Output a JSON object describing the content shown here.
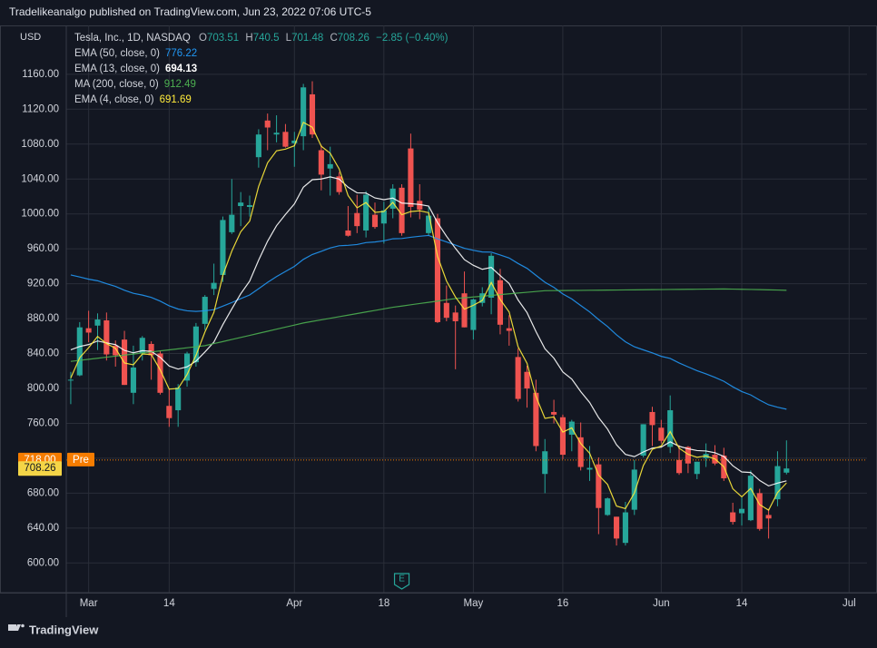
{
  "header": {
    "publisher": "Tradelikeanalgo published on TradingView.com, Jun 23, 2022 07:06 UTC-5"
  },
  "footer": {
    "brand": "TradingView"
  },
  "chart_data": {
    "type": "candlestick",
    "title": "Tesla, Inc., 1D, NASDAQ",
    "currency": "USD",
    "ohlc_prefixes": [
      "O",
      "H",
      "L",
      "C"
    ],
    "change": "−2.85 (−0.40%)",
    "x": [
      "2022-02-25",
      "2022-02-28",
      "2022-03-01",
      "2022-03-02",
      "2022-03-03",
      "2022-03-04",
      "2022-03-07",
      "2022-03-08",
      "2022-03-09",
      "2022-03-10",
      "2022-03-11",
      "2022-03-14",
      "2022-03-15",
      "2022-03-16",
      "2022-03-17",
      "2022-03-18",
      "2022-03-21",
      "2022-03-22",
      "2022-03-23",
      "2022-03-24",
      "2022-03-25",
      "2022-03-28",
      "2022-03-29",
      "2022-03-30",
      "2022-03-31",
      "2022-04-01",
      "2022-04-04",
      "2022-04-05",
      "2022-04-06",
      "2022-04-07",
      "2022-04-08",
      "2022-04-11",
      "2022-04-12",
      "2022-04-13",
      "2022-04-14",
      "2022-04-18",
      "2022-04-19",
      "2022-04-20",
      "2022-04-21",
      "2022-04-22",
      "2022-04-25",
      "2022-04-26",
      "2022-04-27",
      "2022-04-28",
      "2022-04-29",
      "2022-05-02",
      "2022-05-03",
      "2022-05-04",
      "2022-05-05",
      "2022-05-06",
      "2022-05-09",
      "2022-05-10",
      "2022-05-11",
      "2022-05-12",
      "2022-05-13",
      "2022-05-16",
      "2022-05-17",
      "2022-05-18",
      "2022-05-19",
      "2022-05-20",
      "2022-05-23",
      "2022-05-24",
      "2022-05-25",
      "2022-05-26",
      "2022-05-27",
      "2022-05-31",
      "2022-06-01",
      "2022-06-02",
      "2022-06-03",
      "2022-06-06",
      "2022-06-07",
      "2022-06-08",
      "2022-06-09",
      "2022-06-10",
      "2022-06-13",
      "2022-06-14",
      "2022-06-15",
      "2022-06-16",
      "2022-06-17",
      "2022-06-21",
      "2022-06-22"
    ],
    "open": [
      809,
      815,
      869,
      872,
      878,
      849,
      856,
      795,
      840,
      851,
      840,
      780,
      775,
      809,
      830,
      874,
      914,
      930,
      979,
      1009,
      1008,
      1065,
      1107,
      1091,
      1094,
      1081,
      1089,
      1137,
      1073,
      1052,
      1043,
      981,
      1001,
      981,
      999,
      989,
      1006,
      1030,
      1075,
      1015,
      978,
      995,
      898,
      887,
      909,
      867,
      898,
      904,
      924,
      869,
      836,
      819,
      795,
      702,
      773,
      767,
      747,
      744,
      707,
      713,
      655,
      653,
      623,
      661,
      723,
      773,
      755,
      733,
      718,
      733,
      702,
      720,
      724,
      723,
      658,
      657,
      649,
      680,
      655,
      673,
      703.51
    ],
    "high": [
      819,
      876,
      889,
      886,
      887,
      855,
      866,
      849,
      860,
      854,
      843,
      800,
      805,
      842,
      875,
      907,
      943,
      997,
      1040,
      1025,
      1021,
      1097,
      1115,
      1113,
      1103,
      1094,
      1149,
      1152,
      1079,
      1077,
      1048,
      1009,
      1022,
      1026,
      1013,
      1014,
      1034,
      1034,
      1092,
      1034,
      1008,
      1000,
      918,
      895,
      934,
      903,
      916,
      955,
      937,
      884,
      846,
      826,
      810,
      742,
      787,
      770,
      764,
      761,
      734,
      721,
      675,
      653,
      670,
      718,
      759,
      779,
      764,
      792,
      735,
      734,
      716,
      737,
      735,
      732,
      669,
      675,
      706,
      685,
      662,
      728,
      740.5
    ],
    "low": [
      782,
      814,
      853,
      844,
      832,
      825,
      804,
      782,
      832,
      810,
      793,
      756,
      756,
      802,
      825,
      867,
      907,
      922,
      977,
      986,
      997,
      1053,
      1073,
      1082,
      1076,
      1054,
      1073,
      1087,
      1027,
      1021,
      1022,
      974,
      978,
      973,
      983,
      966,
      995,
      975,
      996,
      994,
      975,
      875,
      877,
      822,
      870,
      856,
      894,
      885,
      862,
      849,
      785,
      778,
      728,
      680,
      760,
      719,
      728,
      706,
      694,
      633,
      654,
      620,
      620,
      655,
      721,
      734,
      737,
      726,
      701,
      703,
      696,
      710,
      712,
      694,
      644,
      643,
      648,
      637,
      628,
      665,
      701.48
    ],
    "close": [
      810,
      870,
      864,
      879,
      839,
      838,
      804,
      824,
      858,
      838,
      795,
      766,
      801,
      840,
      871,
      905,
      921,
      993,
      999,
      1013,
      1010,
      1091,
      1099,
      1093,
      1077,
      1084,
      1145,
      1091,
      1045,
      1057,
      1025,
      975,
      986,
      1022,
      985,
      1004,
      1029,
      978,
      1008,
      1005,
      998,
      876,
      881,
      877,
      870,
      902,
      909,
      952,
      873,
      866,
      788,
      800,
      734,
      728,
      770,
      724,
      762,
      710,
      709,
      663,
      674,
      628,
      658,
      707,
      759,
      758,
      740,
      775,
      703,
      714,
      716,
      725,
      714,
      697,
      647,
      662,
      700,
      639,
      651,
      711,
      708.26
    ],
    "up_color": "#26a69a",
    "down_color": "#ef5350",
    "series": [
      {
        "name": "EMA (50, close, 0)",
        "color": "#2196f3",
        "values": [
          930.1,
          927.7,
          925.2,
          923.4,
          920.1,
          916.9,
          912.5,
          909.0,
          907.0,
          904.3,
          900.0,
          894.7,
          891.0,
          889.0,
          888.3,
          889.0,
          890.3,
          894.3,
          898.4,
          902.9,
          907.1,
          914.3,
          921.5,
          928.2,
          934.0,
          939.9,
          947.9,
          953.5,
          957.1,
          961.0,
          963.5,
          964.0,
          964.9,
          967.1,
          967.8,
          969.2,
          971.5,
          971.8,
          973.2,
          974.4,
          975.3,
          971.4,
          967.9,
          964.3,
          960.6,
          958.3,
          956.4,
          956.2,
          952.9,
          949.5,
          943.2,
          937.6,
          929.6,
          921.7,
          915.8,
          908.3,
          902.6,
          895.0,
          887.7,
          878.9,
          870.9,
          861.4,
          853.4,
          847.7,
          844.2,
          840.8,
          836.8,
          834.4,
          829.2,
          824.7,
          820.4,
          816.7,
          812.7,
          808.2,
          801.9,
          796.4,
          792.6,
          786.6,
          781.3,
          778.5,
          776.22
        ]
      },
      {
        "name": "EMA (13, close, 0)",
        "color": "#ffffff",
        "values": [
          844.3,
          848.0,
          850.3,
          854.4,
          852.2,
          850.2,
          843.6,
          840.8,
          843.3,
          842.5,
          835.7,
          825.7,
          822.2,
          824.7,
          831.3,
          841.8,
          853.1,
          873.1,
          891.1,
          908.5,
          923.0,
          947.0,
          968.7,
          986.5,
          999.4,
          1011.5,
          1030.6,
          1039.2,
          1040.0,
          1042.4,
          1039.9,
          1030.6,
          1024.2,
          1023.9,
          1018.3,
          1016.3,
          1018.1,
          1012.4,
          1011.8,
          1010.8,
          1009.0,
          990.0,
          974.4,
          960.5,
          947.6,
          941.1,
          936.5,
          938.7,
          929.3,
          920.3,
          901.4,
          886.9,
          865.1,
          845.5,
          834.7,
          818.9,
          810.8,
          796.4,
          783.9,
          766.6,
          753.4,
          735.5,
          724.4,
          721.9,
          727.2,
          731.6,
          732.8,
          738.8,
          733.7,
          730.9,
          728.8,
          728.3,
          726.3,
          722.1,
          711.4,
          704.3,
          703.7,
          694.5,
          688.3,
          691.5,
          694.13
        ]
      },
      {
        "name": "MA (200, close, 0)",
        "color": "#4caf50",
        "values": [
          831,
          832.2,
          833.4,
          834.6,
          835.8,
          837,
          838.2,
          839.4,
          840.6,
          841.8,
          843,
          844.2,
          845.4,
          846.6,
          847.8,
          849,
          851.4,
          853.7,
          856.1,
          858.4,
          860.8,
          863.2,
          865.5,
          867.9,
          870.3,
          872.6,
          875,
          876.8,
          878.6,
          880.4,
          882.2,
          884,
          885.8,
          887.6,
          889.4,
          891.2,
          893,
          894.4,
          895.9,
          897.3,
          898.7,
          900.1,
          901.6,
          903,
          903.9,
          904.8,
          905.7,
          906.6,
          907.5,
          908.4,
          909.3,
          910.2,
          911.1,
          912,
          912.1,
          912.2,
          912.3,
          912.4,
          912.5,
          912.6,
          912.7,
          912.8,
          912.9,
          913,
          913.1,
          913.2,
          913.3,
          913.4,
          913.5,
          913.6,
          913.7,
          913.8,
          913.9,
          914,
          913.8,
          913.6,
          913.4,
          913.2,
          913,
          912.8,
          912.49
        ]
      },
      {
        "name": "EMA (4, close, 0)",
        "color": "#ffeb3b",
        "values": [
          812,
          835.2,
          846.7,
          859.6,
          851.4,
          846.0,
          829.2,
          827.1,
          839.5,
          838.9,
          821.3,
          799.2,
          799.9,
          815.9,
          837.9,
          864.7,
          887.2,
          929.5,
          957.3,
          979.6,
          991.8,
          1031.5,
          1058.5,
          1072.3,
          1074.2,
          1078.1,
          1104.9,
          1099.3,
          1077.6,
          1069.4,
          1051.6,
          1021.0,
          1007.0,
          1013.0,
          1001.8,
          1002.7,
          1013.2,
          999.1,
          1002.7,
          1003.6,
          1001.4,
          951.2,
          923.1,
          904.7,
          890.8,
          895.3,
          900.8,
          921.3,
          902.0,
          887.6,
          847.8,
          828.7,
          790.8,
          765.7,
          767.4,
          750.0,
          754.8,
          736.9,
          725.7,
          700.6,
          690.0,
          665.2,
          662.3,
          680.2,
          711.7,
          730.2,
          734.1,
          750.5,
          731.5,
          724.5,
          721.1,
          722.7,
          719.2,
          710.3,
          685.0,
          675.8,
          685.5,
          666.9,
          660.5,
          680.7,
          691.69
        ]
      }
    ],
    "ylim": [
      566,
      1216
    ],
    "yticks": [
      {
        "value": 600,
        "label": "600.00"
      },
      {
        "value": 640,
        "label": "640.00"
      },
      {
        "value": 680,
        "label": "680.00"
      },
      {
        "value": 720,
        "label": "720.00"
      },
      {
        "value": 760,
        "label": "760.00"
      },
      {
        "value": 800,
        "label": "800.00"
      },
      {
        "value": 840,
        "label": "840.00"
      },
      {
        "value": 880,
        "label": "880.00"
      },
      {
        "value": 920,
        "label": "920.00"
      },
      {
        "value": 960,
        "label": "960.00"
      },
      {
        "value": 1000,
        "label": "1000.00"
      },
      {
        "value": 1040,
        "label": "1040.00"
      },
      {
        "value": 1080,
        "label": "1080.00"
      },
      {
        "value": 1120,
        "label": "1120.00"
      },
      {
        "value": 1160,
        "label": "1160.00"
      }
    ],
    "xlim": [
      "2022-02-25",
      "2022-07-05"
    ],
    "xticks": [
      {
        "value": "2022-03-01",
        "label": "Mar"
      },
      {
        "value": "2022-03-14",
        "label": "14"
      },
      {
        "value": "2022-04-01",
        "label": "Apr"
      },
      {
        "value": "2022-04-18",
        "label": "18"
      },
      {
        "value": "2022-05-02",
        "label": "May"
      },
      {
        "value": "2022-05-16",
        "label": "16"
      },
      {
        "value": "2022-06-01",
        "label": "Jun"
      },
      {
        "value": "2022-06-14",
        "label": "14"
      },
      {
        "value": "2022-07-01",
        "label": "Jul"
      }
    ],
    "grid": true,
    "premarket": {
      "value": 718,
      "label": "718.00",
      "tag": "Pre",
      "color": "#f57c00"
    },
    "last_price_color": "#f4d547",
    "earnings": {
      "x": "2022-04-20",
      "label": "E"
    }
  }
}
